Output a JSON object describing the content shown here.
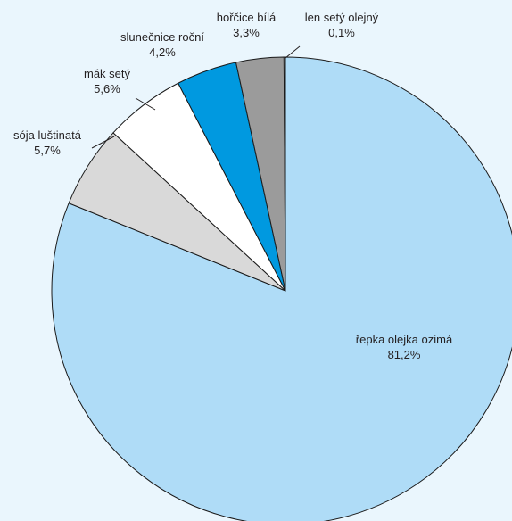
{
  "chart_data": {
    "type": "pie",
    "title": "",
    "slices": [
      {
        "label": "řepka olejka ozimá",
        "value_label": "81,2%",
        "value": 81.2,
        "color": "#afdcf7"
      },
      {
        "label": "sója luštinatá",
        "value_label": "5,7%",
        "value": 5.7,
        "color": "#d9d9d9"
      },
      {
        "label": "mák setý",
        "value_label": "5,6%",
        "value": 5.6,
        "color": "#ffffff"
      },
      {
        "label": "slunečnice roční",
        "value_label": "4,2%",
        "value": 4.2,
        "color": "#0099e0"
      },
      {
        "label": "hořčice bílá",
        "value_label": "3,3%",
        "value": 3.3,
        "color": "#9b9b9b"
      },
      {
        "label": "len setý olejný",
        "value_label": "0,1%",
        "value": 0.1,
        "color": "#ffffff"
      }
    ]
  }
}
